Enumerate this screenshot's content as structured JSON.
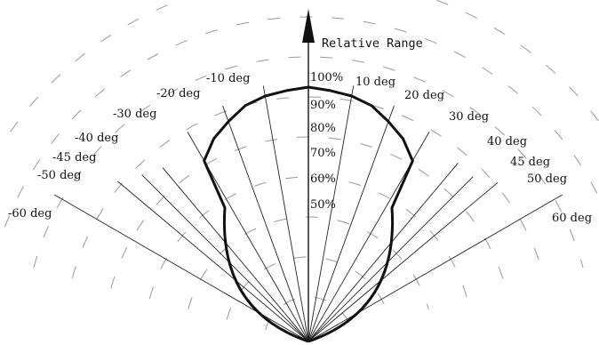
{
  "chart_data": {
    "type": "polar-pattern",
    "title": "Relative Range",
    "radial_unit": "%",
    "radial_ticks": [
      "100%",
      "90%",
      "80%",
      "70%",
      "60%",
      "50%"
    ],
    "radial_tick_values": [
      100,
      90,
      80,
      70,
      60,
      50
    ],
    "angle_labels_left": [
      "-10 deg",
      "-20 deg",
      "-30 deg",
      "-40 deg",
      "-45 deg",
      "-50 deg",
      "-60 deg"
    ],
    "angle_labels_right": [
      "10 deg",
      "20 deg",
      "30 deg",
      "40 deg",
      "45 deg",
      "50 deg",
      "60 deg"
    ],
    "angles_deg": [
      -60,
      -50,
      -45,
      -40,
      -30,
      -20,
      -10,
      0,
      10,
      20,
      30,
      40,
      45,
      50,
      60
    ],
    "coverage": {
      "angle_deg": [
        -32,
        -30,
        -25,
        -20,
        -15,
        -10,
        -5,
        0,
        5,
        10,
        15,
        20,
        25,
        30,
        32
      ],
      "relative_range_pct": [
        62,
        82,
        88,
        92,
        96,
        98,
        99,
        100,
        99,
        98,
        96,
        92,
        88,
        82,
        62
      ]
    },
    "grid": true,
    "grid_style": "dashed arcs",
    "colors": {
      "line": "#111111",
      "grid": "#999999",
      "axis": "#111111"
    }
  }
}
